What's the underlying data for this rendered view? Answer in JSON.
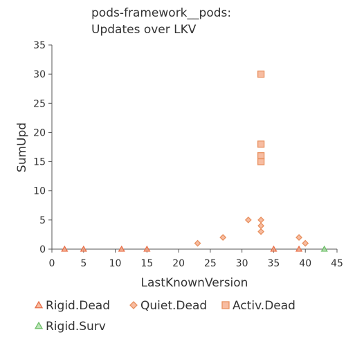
{
  "chart_data": {
    "type": "scatter",
    "title_lines": [
      "pods-framework__pods:",
      "Updates over LKV"
    ],
    "xlabel": "LastKnownVersion",
    "ylabel": "SumUpd",
    "xlim": [
      0,
      45
    ],
    "ylim": [
      0,
      35
    ],
    "x_ticks": [
      0,
      5,
      10,
      15,
      20,
      25,
      30,
      35,
      40,
      45
    ],
    "y_ticks": [
      0,
      5,
      10,
      15,
      20,
      25,
      30,
      35
    ],
    "grid": false,
    "legend_placement": "bottom",
    "series": [
      {
        "name": "Rigid.Dead",
        "marker": "triangle",
        "color": "#f4a582",
        "stroke": "#e8704a",
        "points": [
          {
            "x": 2,
            "y": 0
          },
          {
            "x": 5,
            "y": 0
          },
          {
            "x": 11,
            "y": 0
          },
          {
            "x": 15,
            "y": 0
          },
          {
            "x": 35,
            "y": 0
          },
          {
            "x": 39,
            "y": 0
          }
        ]
      },
      {
        "name": "Quiet.Dead",
        "marker": "diamond",
        "color": "#f4a582",
        "stroke": "#e8905f",
        "points": [
          {
            "x": 23,
            "y": 1
          },
          {
            "x": 27,
            "y": 2
          },
          {
            "x": 31,
            "y": 5
          },
          {
            "x": 33,
            "y": 5
          },
          {
            "x": 33,
            "y": 4
          },
          {
            "x": 33,
            "y": 3
          },
          {
            "x": 39,
            "y": 2
          },
          {
            "x": 40,
            "y": 1
          }
        ]
      },
      {
        "name": "Activ.Dead",
        "marker": "square",
        "color": "#f4a582",
        "stroke": "#e8905f",
        "points": [
          {
            "x": 33,
            "y": 30
          },
          {
            "x": 33,
            "y": 18
          },
          {
            "x": 33,
            "y": 16
          },
          {
            "x": 33,
            "y": 15
          }
        ]
      },
      {
        "name": "Rigid.Surv",
        "marker": "triangle",
        "color": "#a6dba0",
        "stroke": "#6fbf6a",
        "points": [
          {
            "x": 43,
            "y": 0
          }
        ]
      }
    ]
  }
}
